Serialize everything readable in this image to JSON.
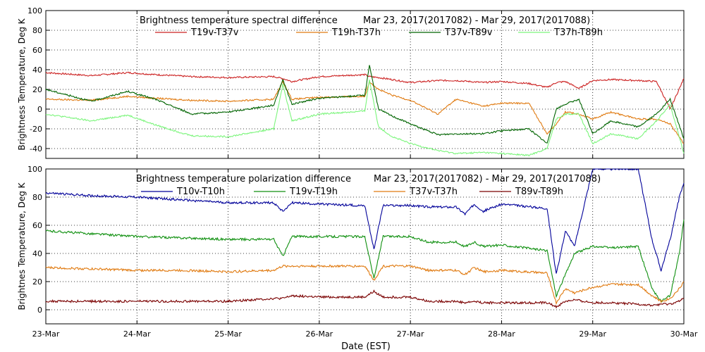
{
  "figure": {
    "xlabel": "Date (EST)",
    "x_ticks": [
      "23-Mar",
      "24-Mar",
      "25-Mar",
      "26-Mar",
      "27-Mar",
      "28-Mar",
      "29-Mar",
      "30-Mar"
    ],
    "x_range_days": [
      0,
      7
    ]
  },
  "chart_data": [
    {
      "type": "line",
      "title": "Brightness temperature spectral difference",
      "date_range": "Mar 23, 2017(2017082) - Mar 29, 2017(2017088)",
      "ylabel": "Brightness Temperature, Deg K",
      "ylim": [
        -50,
        100
      ],
      "y_ticks": [
        "100",
        "80",
        "60",
        "40",
        "20",
        "0",
        "-20",
        "-40"
      ],
      "x_days": [
        0,
        0.5,
        0.9,
        1.2,
        1.6,
        2,
        2.5,
        2.6,
        2.7,
        3,
        3.5,
        3.55,
        3.65,
        3.8,
        4,
        4.3,
        4.5,
        4.8,
        5,
        5.3,
        5.5,
        5.6,
        5.7,
        5.85,
        6,
        6.2,
        6.5,
        6.7,
        6.85,
        7
      ],
      "series": [
        {
          "name": "T19v-T37v",
          "color": "#cc2222",
          "values": [
            37,
            34,
            37,
            35,
            33,
            32,
            33,
            31,
            28,
            33,
            35,
            33,
            32,
            30,
            27,
            29,
            29,
            27,
            28,
            26,
            22,
            27,
            28,
            21,
            29,
            30,
            29,
            28,
            0,
            31
          ]
        },
        {
          "name": "T19h-T37h",
          "color": "#e07a10",
          "values": [
            10,
            9,
            13,
            11,
            9,
            8,
            10,
            28,
            10,
            12,
            13,
            28,
            20,
            14,
            9,
            -5,
            10,
            3,
            6,
            6,
            -25,
            -15,
            -3,
            -5,
            -10,
            -3,
            -10,
            -10,
            -15,
            -35
          ]
        },
        {
          "name": "T37v-T89v",
          "color": "#006400",
          "values": [
            20,
            8,
            18,
            10,
            -5,
            -3,
            4,
            30,
            5,
            11,
            14,
            45,
            0,
            -7,
            -15,
            -26,
            -25,
            -25,
            -22,
            -20,
            -35,
            0,
            5,
            10,
            -25,
            -12,
            -18,
            -5,
            10,
            -30
          ]
        },
        {
          "name": "T37h-T89h",
          "color": "#7cf57c",
          "values": [
            -5,
            -12,
            -6,
            -16,
            -27,
            -28,
            -20,
            25,
            -12,
            -5,
            -2,
            30,
            -18,
            -28,
            -35,
            -42,
            -45,
            -44,
            -45,
            -47,
            -40,
            -10,
            -5,
            -5,
            -35,
            -25,
            -30,
            -12,
            5,
            -45
          ]
        }
      ]
    },
    {
      "type": "line",
      "title": "Brightness temperature polarization difference",
      "date_range": "Mar 23, 2017(2017082) - Mar 29, 2017(2017088)",
      "ylabel": "Brightnes Temperature, Deg K",
      "ylim": [
        -10,
        100
      ],
      "y_ticks": [
        "100",
        "80",
        "60",
        "40",
        "20",
        "0"
      ],
      "x_days": [
        0,
        0.5,
        1,
        1.5,
        2,
        2.5,
        2.6,
        2.7,
        3,
        3.5,
        3.6,
        3.7,
        4,
        4.2,
        4.5,
        4.6,
        4.7,
        4.8,
        5,
        5.5,
        5.6,
        5.7,
        5.8,
        6,
        6.2,
        6.5,
        6.65,
        6.75,
        6.85,
        6.95,
        7
      ],
      "series": [
        {
          "name": "T10v-T10h",
          "color": "#000099",
          "values": [
            83,
            81,
            80,
            78,
            76,
            76,
            70,
            76,
            75,
            74,
            43,
            74,
            74,
            73,
            73,
            68,
            75,
            70,
            75,
            72,
            25,
            56,
            45,
            100,
            100,
            100,
            50,
            28,
            50,
            80,
            90
          ]
        },
        {
          "name": "T19v-T19h",
          "color": "#109010",
          "values": [
            56,
            54,
            52,
            51,
            50,
            50,
            38,
            52,
            52,
            52,
            22,
            52,
            52,
            48,
            48,
            45,
            48,
            45,
            46,
            42,
            10,
            25,
            40,
            45,
            44,
            45,
            15,
            6,
            10,
            40,
            64
          ]
        },
        {
          "name": "T37v-T37h",
          "color": "#e07a10",
          "values": [
            30,
            29,
            28,
            28,
            27,
            28,
            31,
            31,
            31,
            31,
            21,
            31,
            31,
            28,
            28,
            25,
            30,
            27,
            28,
            26,
            5,
            15,
            12,
            16,
            18,
            18,
            10,
            6,
            8,
            15,
            20
          ]
        },
        {
          "name": "T89v-T89h",
          "color": "#7a0000",
          "values": [
            6,
            6,
            6,
            6,
            6,
            8,
            8,
            10,
            9,
            9,
            13,
            9,
            9,
            6,
            6,
            5,
            6,
            5,
            5,
            5,
            2,
            6,
            7,
            5,
            5,
            4,
            3,
            4,
            4,
            6,
            8
          ]
        }
      ]
    }
  ]
}
